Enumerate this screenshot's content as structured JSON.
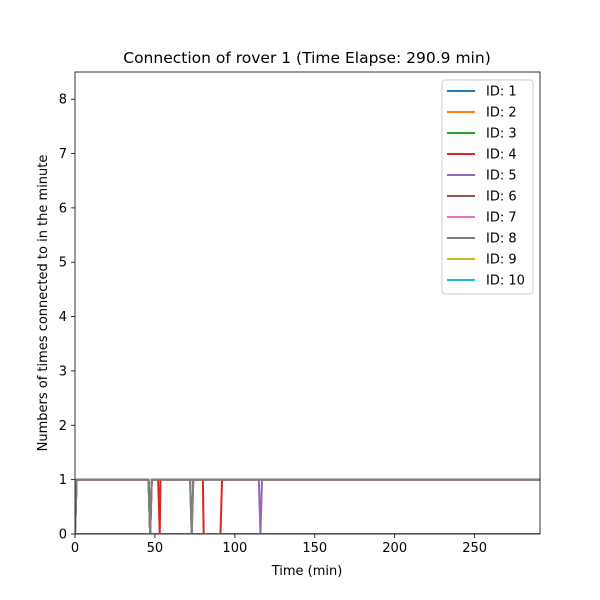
{
  "chart_data": {
    "type": "line",
    "title": "Connection of rover 1 (Time Elapse: 290.9 min)",
    "xlabel": "Time (min)",
    "ylabel": "Numbers of times connected to in the minute",
    "xlim": [
      0,
      290.9
    ],
    "ylim": [
      0,
      8.5
    ],
    "xticks": [
      "0",
      "50",
      "100",
      "150",
      "200",
      "250"
    ],
    "xtick_values": [
      0,
      50,
      100,
      150,
      200,
      250
    ],
    "yticks": [
      "0",
      "1",
      "2",
      "3",
      "4",
      "5",
      "6",
      "7",
      "8"
    ],
    "ytick_values": [
      0,
      1,
      2,
      3,
      4,
      5,
      6,
      7,
      8
    ],
    "grid": false,
    "legend_position": "top-right",
    "series": [
      {
        "name": "ID: 1",
        "color": "#1f77b4",
        "points": [
          [
            0,
            0
          ],
          [
            290.9,
            0
          ]
        ]
      },
      {
        "name": "ID: 2",
        "color": "#ff7f0e",
        "points": [
          [
            0,
            0
          ],
          [
            1,
            1
          ],
          [
            46,
            1
          ],
          [
            47,
            0
          ],
          [
            48,
            1
          ],
          [
            290.9,
            1
          ]
        ]
      },
      {
        "name": "ID: 3",
        "color": "#2ca02c",
        "points": [
          [
            0,
            0
          ],
          [
            1,
            1
          ],
          [
            46,
            1
          ],
          [
            47,
            0
          ],
          [
            48,
            1
          ],
          [
            290.9,
            1
          ]
        ]
      },
      {
        "name": "ID: 4",
        "color": "#d62728",
        "points": [
          [
            0,
            0
          ],
          [
            1,
            1
          ],
          [
            46,
            1
          ],
          [
            47,
            0
          ],
          [
            48,
            1
          ],
          [
            52,
            1
          ],
          [
            53,
            0
          ],
          [
            53.5,
            1
          ],
          [
            80,
            1
          ],
          [
            80.5,
            0
          ],
          [
            91,
            0
          ],
          [
            92,
            1
          ],
          [
            290.9,
            1
          ]
        ]
      },
      {
        "name": "ID: 5",
        "color": "#9467bd",
        "points": [
          [
            0,
            0
          ],
          [
            1,
            1
          ],
          [
            46,
            1
          ],
          [
            47,
            0
          ],
          [
            48,
            1
          ],
          [
            115,
            1
          ],
          [
            116,
            0
          ],
          [
            117,
            1
          ],
          [
            290.9,
            1
          ]
        ]
      },
      {
        "name": "ID: 6",
        "color": "#8c564b",
        "points": [
          [
            0,
            0
          ],
          [
            1,
            1
          ],
          [
            46,
            1
          ],
          [
            47,
            0
          ],
          [
            48,
            1
          ],
          [
            72,
            1
          ],
          [
            73,
            0
          ],
          [
            74,
            1
          ],
          [
            290.9,
            1
          ]
        ]
      },
      {
        "name": "ID: 7",
        "color": "#e377c2",
        "points": [
          [
            0,
            0
          ],
          [
            290.9,
            0
          ]
        ]
      },
      {
        "name": "ID: 8",
        "color": "#7f7f7f",
        "points": [
          [
            0,
            0
          ],
          [
            1,
            1
          ],
          [
            46,
            1
          ],
          [
            47,
            0
          ],
          [
            48,
            1
          ],
          [
            72,
            1
          ],
          [
            73,
            0
          ],
          [
            74,
            1
          ],
          [
            290.9,
            1
          ]
        ]
      },
      {
        "name": "ID: 9",
        "color": "#bcbd22",
        "points": [
          [
            0,
            0
          ],
          [
            290.9,
            0
          ]
        ]
      },
      {
        "name": "ID: 10",
        "color": "#17becf",
        "points": [
          [
            0,
            0
          ],
          [
            290.9,
            0
          ]
        ]
      }
    ]
  }
}
